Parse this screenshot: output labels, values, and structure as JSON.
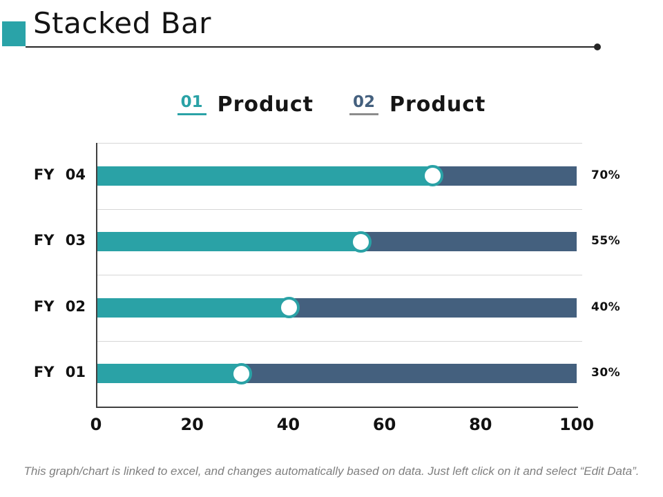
{
  "slide": {
    "title": "Stacked Bar",
    "footer": "This graph/chart is linked to excel, and changes automatically based on data. Just left click on it and select “Edit Data”."
  },
  "legend": {
    "items": [
      {
        "num": "01",
        "label": "Product",
        "num_color": "#2aa2a6",
        "underline_color": "#2aa2a6"
      },
      {
        "num": "02",
        "label": "Product",
        "num_color": "#44607e",
        "underline_color": "#8c8c8c"
      }
    ]
  },
  "chart_data": {
    "type": "bar",
    "orientation": "horizontal",
    "stacked": true,
    "categories": [
      "FY 04",
      "FY 03",
      "FY 02",
      "FY 01"
    ],
    "series": [
      {
        "name": "Product 01",
        "color": "#2aa2a6",
        "values": [
          70,
          55,
          40,
          30
        ]
      },
      {
        "name": "Product 02",
        "color": "#44607e",
        "values": [
          30,
          45,
          60,
          70
        ]
      }
    ],
    "value_labels": [
      "70%",
      "55%",
      "40%",
      "30%"
    ],
    "x_ticks": [
      "0",
      "20",
      "40",
      "60",
      "80",
      "100"
    ],
    "xlim": [
      0,
      100
    ],
    "grid": true,
    "legend_position": "top",
    "marker": {
      "shape": "circle",
      "fill": "#ffffff",
      "ring": "#2aa2a6"
    }
  },
  "colors": {
    "accent_teal": "#2aa2a6",
    "accent_slate": "#44607e",
    "gridline": "#d6d6d6",
    "axis": "#3f3f3f",
    "header_line": "#262626",
    "text": "#111111",
    "footer_text": "#7f7f7f"
  }
}
